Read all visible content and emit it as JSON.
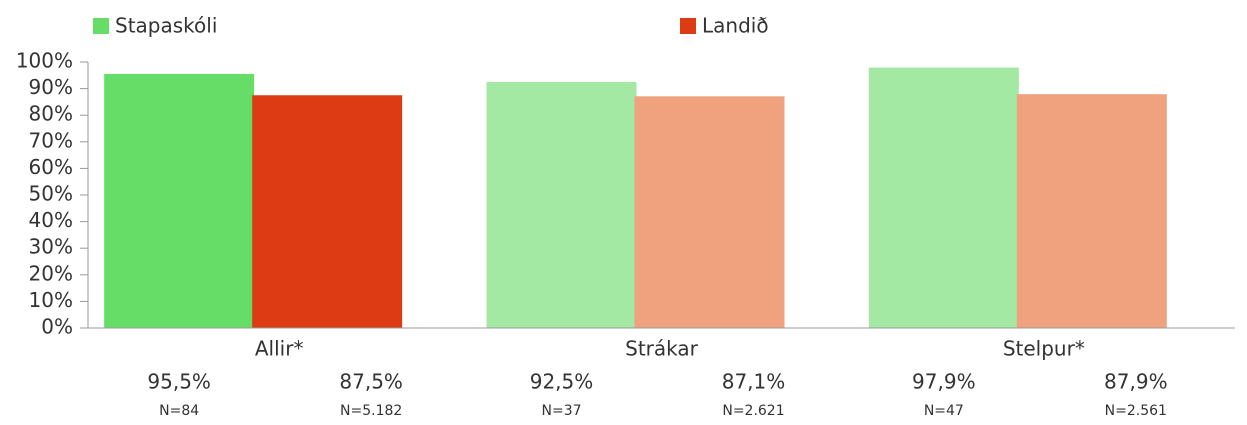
{
  "chart_data": {
    "type": "bar",
    "categories": [
      "Allir*",
      "Strákar",
      "Stelpur*"
    ],
    "series": [
      {
        "name": "Stapaskóli",
        "color": "#66dd66",
        "colors": [
          "#66dd66",
          "#a3e8a3",
          "#a3e8a3"
        ],
        "values": [
          95.5,
          92.5,
          97.9
        ],
        "value_labels": [
          "95,5%",
          "92,5%",
          "97,9%"
        ],
        "n_labels": [
          "N=84",
          "N=37",
          "N=47"
        ]
      },
      {
        "name": "Landið",
        "color": "#dd3b14",
        "colors": [
          "#dd3b14",
          "#f0a27e",
          "#f0a27e"
        ],
        "values": [
          87.5,
          87.1,
          87.9
        ],
        "value_labels": [
          "87,5%",
          "87,1%",
          "87,9%"
        ],
        "n_labels": [
          "N=5.182",
          "N=2.621",
          "N=2.561"
        ]
      }
    ],
    "ylim": [
      0,
      100
    ],
    "yticks": [
      {
        "value": 0,
        "label": "0%"
      },
      {
        "value": 10,
        "label": "10%"
      },
      {
        "value": 20,
        "label": "20%"
      },
      {
        "value": 30,
        "label": "30%"
      },
      {
        "value": 40,
        "label": "40%"
      },
      {
        "value": 50,
        "label": "50%"
      },
      {
        "value": 60,
        "label": "60%"
      },
      {
        "value": 70,
        "label": "70%"
      },
      {
        "value": 80,
        "label": "80%"
      },
      {
        "value": 90,
        "label": "90%"
      },
      {
        "value": 100,
        "label": "100%"
      }
    ],
    "legend": "top"
  }
}
